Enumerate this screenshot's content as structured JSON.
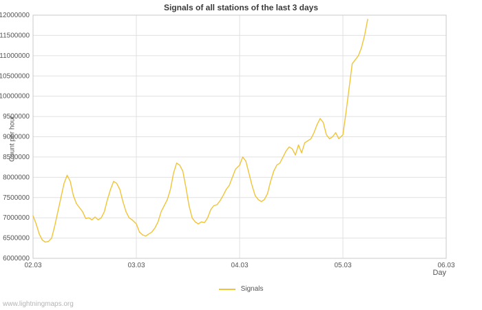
{
  "chart_data": {
    "type": "line",
    "title": "Signals of all stations of the last 3 days",
    "xlabel": "Day",
    "ylabel": "Count per hour",
    "xlim": [
      0,
      4
    ],
    "ylim": [
      6000000,
      12000000
    ],
    "grid": true,
    "legend_position": "bottom-center",
    "xticks": [
      {
        "x": 0,
        "label": "02.03"
      },
      {
        "x": 1,
        "label": "03.03"
      },
      {
        "x": 2,
        "label": "04.03"
      },
      {
        "x": 3,
        "label": "05.03"
      },
      {
        "x": 4,
        "label": "06.03"
      }
    ],
    "yticks": [
      6000000,
      6500000,
      7000000,
      7500000,
      8000000,
      8500000,
      9000000,
      9500000,
      10000000,
      10500000,
      11000000,
      11500000,
      12000000
    ],
    "colors": {
      "line": "#f0c437",
      "grid": "#e0e0e0",
      "border": "#c8c8c8",
      "text": "#545454",
      "title": "#3b3b3b",
      "watermark": "#b4b4b4"
    },
    "series": [
      {
        "name": "Signals",
        "color": "#f0c437",
        "points": [
          [
            0.0,
            7050000
          ],
          [
            0.03,
            6850000
          ],
          [
            0.06,
            6600000
          ],
          [
            0.09,
            6450000
          ],
          [
            0.12,
            6400000
          ],
          [
            0.15,
            6420000
          ],
          [
            0.18,
            6500000
          ],
          [
            0.21,
            6800000
          ],
          [
            0.24,
            7150000
          ],
          [
            0.27,
            7500000
          ],
          [
            0.3,
            7850000
          ],
          [
            0.33,
            8050000
          ],
          [
            0.36,
            7900000
          ],
          [
            0.39,
            7550000
          ],
          [
            0.42,
            7350000
          ],
          [
            0.45,
            7250000
          ],
          [
            0.48,
            7150000
          ],
          [
            0.51,
            6980000
          ],
          [
            0.54,
            7000000
          ],
          [
            0.57,
            6950000
          ],
          [
            0.6,
            7020000
          ],
          [
            0.63,
            6950000
          ],
          [
            0.66,
            7000000
          ],
          [
            0.69,
            7150000
          ],
          [
            0.72,
            7450000
          ],
          [
            0.75,
            7700000
          ],
          [
            0.78,
            7900000
          ],
          [
            0.81,
            7850000
          ],
          [
            0.84,
            7700000
          ],
          [
            0.87,
            7400000
          ],
          [
            0.9,
            7150000
          ],
          [
            0.93,
            7000000
          ],
          [
            0.96,
            6950000
          ],
          [
            1.0,
            6850000
          ],
          [
            1.03,
            6650000
          ],
          [
            1.06,
            6580000
          ],
          [
            1.09,
            6550000
          ],
          [
            1.12,
            6600000
          ],
          [
            1.15,
            6650000
          ],
          [
            1.18,
            6750000
          ],
          [
            1.21,
            6900000
          ],
          [
            1.24,
            7150000
          ],
          [
            1.27,
            7300000
          ],
          [
            1.3,
            7450000
          ],
          [
            1.33,
            7700000
          ],
          [
            1.36,
            8100000
          ],
          [
            1.39,
            8350000
          ],
          [
            1.42,
            8300000
          ],
          [
            1.45,
            8150000
          ],
          [
            1.48,
            7750000
          ],
          [
            1.51,
            7300000
          ],
          [
            1.54,
            7000000
          ],
          [
            1.57,
            6900000
          ],
          [
            1.6,
            6850000
          ],
          [
            1.63,
            6900000
          ],
          [
            1.66,
            6880000
          ],
          [
            1.69,
            7000000
          ],
          [
            1.72,
            7200000
          ],
          [
            1.75,
            7300000
          ],
          [
            1.78,
            7320000
          ],
          [
            1.81,
            7420000
          ],
          [
            1.84,
            7550000
          ],
          [
            1.87,
            7700000
          ],
          [
            1.9,
            7800000
          ],
          [
            1.93,
            8000000
          ],
          [
            1.96,
            8200000
          ],
          [
            2.0,
            8300000
          ],
          [
            2.03,
            8500000
          ],
          [
            2.06,
            8400000
          ],
          [
            2.09,
            8100000
          ],
          [
            2.12,
            7800000
          ],
          [
            2.15,
            7550000
          ],
          [
            2.18,
            7450000
          ],
          [
            2.21,
            7400000
          ],
          [
            2.24,
            7450000
          ],
          [
            2.27,
            7600000
          ],
          [
            2.3,
            7900000
          ],
          [
            2.33,
            8150000
          ],
          [
            2.36,
            8300000
          ],
          [
            2.39,
            8350000
          ],
          [
            2.42,
            8500000
          ],
          [
            2.45,
            8650000
          ],
          [
            2.48,
            8750000
          ],
          [
            2.51,
            8700000
          ],
          [
            2.54,
            8550000
          ],
          [
            2.57,
            8800000
          ],
          [
            2.6,
            8600000
          ],
          [
            2.63,
            8850000
          ],
          [
            2.66,
            8900000
          ],
          [
            2.69,
            8950000
          ],
          [
            2.72,
            9100000
          ],
          [
            2.75,
            9300000
          ],
          [
            2.78,
            9450000
          ],
          [
            2.81,
            9350000
          ],
          [
            2.84,
            9050000
          ],
          [
            2.87,
            8950000
          ],
          [
            2.9,
            9000000
          ],
          [
            2.93,
            9100000
          ],
          [
            2.96,
            8950000
          ],
          [
            3.0,
            9050000
          ],
          [
            3.03,
            9600000
          ],
          [
            3.06,
            10200000
          ],
          [
            3.09,
            10800000
          ],
          [
            3.12,
            10900000
          ],
          [
            3.15,
            11000000
          ],
          [
            3.18,
            11200000
          ],
          [
            3.21,
            11500000
          ],
          [
            3.24,
            11900000
          ]
        ]
      }
    ]
  },
  "footer": {
    "watermark": "www.lightningmaps.org"
  }
}
